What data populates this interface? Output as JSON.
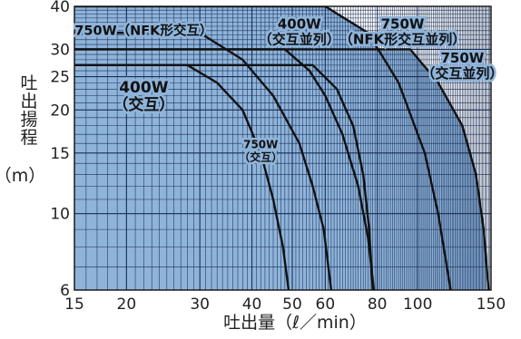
{
  "chart_data": {
    "type": "line",
    "x_scale": "log",
    "y_scale": "log",
    "xlim": [
      15,
      150
    ],
    "ylim": [
      6,
      40
    ],
    "xlabel": "吐出量（ℓ／min）",
    "ylabel_chars": [
      "吐",
      "出",
      "揚",
      "程"
    ],
    "ylabel_unit": "（m）",
    "x_ticks": [
      15,
      20,
      30,
      40,
      50,
      60,
      80,
      100,
      150
    ],
    "y_ticks": [
      6,
      10,
      15,
      20,
      25,
      30,
      40
    ],
    "grid": true,
    "fill_color": "#8fb4da",
    "grid_color": "#1a2e55",
    "series": [
      {
        "name": "400W（交互）",
        "label_lines": [
          "400W",
          "（交互）"
        ],
        "points": [
          [
            15,
            27
          ],
          [
            28,
            27
          ],
          [
            33,
            24
          ],
          [
            38,
            20
          ],
          [
            42,
            15
          ],
          [
            45,
            11
          ],
          [
            47.5,
            8
          ],
          [
            49,
            6
          ]
        ]
      },
      {
        "name": "750W（NFK形交互）",
        "label_lines": [
          "750W（NFK形交互）"
        ],
        "points": [
          [
            15,
            33.5
          ],
          [
            30,
            33.5
          ],
          [
            38,
            28
          ],
          [
            45,
            22
          ],
          [
            52,
            16
          ],
          [
            56,
            12
          ],
          [
            59.5,
            9
          ],
          [
            62,
            6
          ]
        ]
      },
      {
        "name": "400W（交互並列）",
        "label_lines": [
          "400W",
          "（交互並列）"
        ],
        "points": [
          [
            15,
            27
          ],
          [
            56,
            27
          ],
          [
            64,
            23
          ],
          [
            70,
            18
          ],
          [
            74,
            13
          ],
          [
            76.5,
            9
          ],
          [
            78,
            6
          ]
        ]
      },
      {
        "name": "750W（交互）",
        "label_lines": [
          "750W",
          "（交互）"
        ],
        "points": [
          [
            15,
            30
          ],
          [
            48,
            30
          ],
          [
            55,
            26
          ],
          [
            60,
            22
          ],
          [
            66,
            17
          ],
          [
            72,
            12
          ],
          [
            76,
            8.5
          ],
          [
            78.5,
            6
          ]
        ]
      },
      {
        "name": "750W（NFK形交互並列）",
        "label_lines": [
          "750W",
          "（NFK形交互並列）"
        ],
        "points": [
          [
            15,
            40
          ],
          [
            60,
            40
          ],
          [
            76,
            33.5
          ],
          [
            90,
            24
          ],
          [
            104,
            15
          ],
          [
            112,
            10
          ],
          [
            120,
            6
          ]
        ]
      },
      {
        "name": "750W（交互並列）",
        "label_lines": [
          "750W",
          "（交互並列）"
        ],
        "points": [
          [
            15,
            30
          ],
          [
            96,
            30
          ],
          [
            112,
            24
          ],
          [
            128,
            18
          ],
          [
            138,
            13
          ],
          [
            144,
            9
          ],
          [
            148,
            6
          ]
        ]
      }
    ]
  }
}
